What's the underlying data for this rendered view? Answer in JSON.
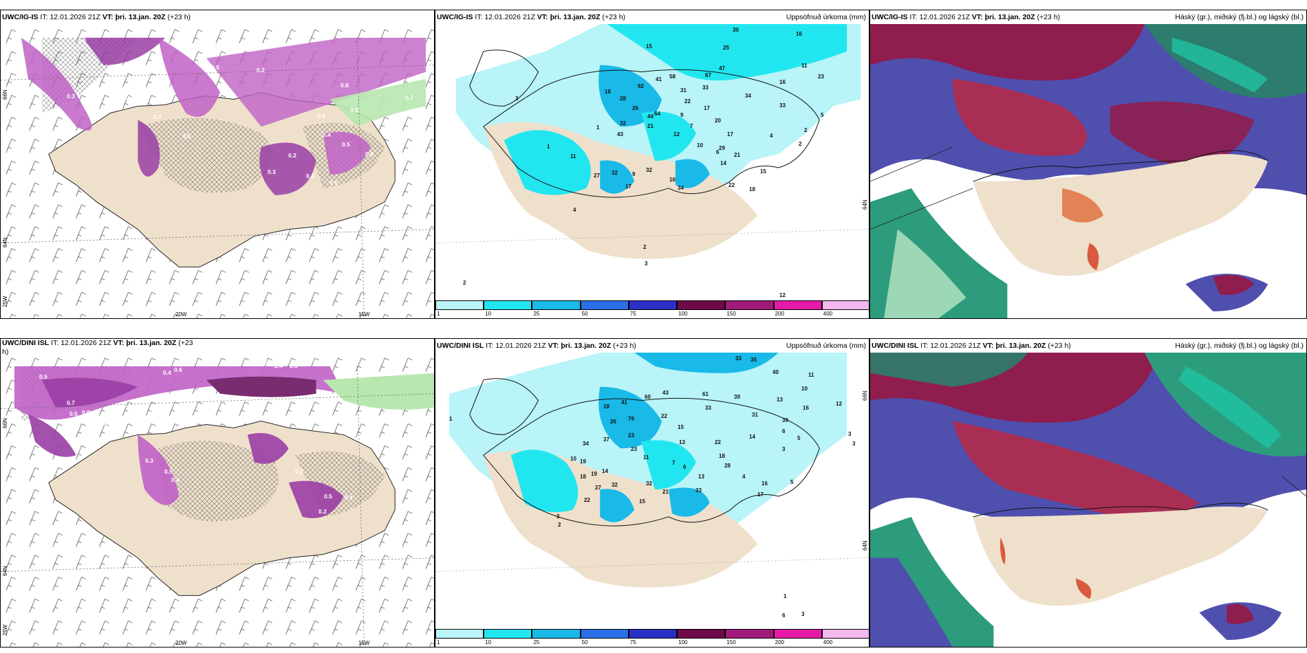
{
  "panels": [
    {
      "id": "p1",
      "model": "UWC/IG-IS",
      "it_label": "IT:",
      "it_value": "12.01.2026 21Z",
      "vt_label": "VT:",
      "vt_value": "þri. 13.jan. 20Z",
      "lead": "(+23 h)",
      "right_title": "",
      "axis": {
        "lat_top": "66N",
        "lat_mid": "64N",
        "lon_left": "25W",
        "lon_mid": "20W",
        "lon_right": "15W"
      },
      "labels": [
        "0.3",
        "0.4",
        "0.5",
        "0.6",
        "0.2",
        "0.8",
        "0.7",
        "0.3",
        "0.4",
        "0.5",
        "0.2",
        "0.4",
        "0.3",
        "0.6",
        "0.5",
        "0.2",
        "0.4",
        "0.6",
        "0.5"
      ]
    },
    {
      "id": "p2",
      "model": "UWC/IG-IS",
      "it_label": "IT:",
      "it_value": "12.01.2026 21Z",
      "vt_label": "VT:",
      "vt_value": "þri. 13.jan. 20Z",
      "lead": "(+23 h)",
      "right_title": "Uppsöfnuð úrkoma (mm)",
      "axis": {
        "lat_right": "64N"
      },
      "labels": [
        "15",
        "30",
        "16",
        "25",
        "47",
        "11",
        "23",
        "67",
        "33",
        "18",
        "92",
        "41",
        "58",
        "31",
        "22",
        "34",
        "16",
        "33",
        "28",
        "26",
        "64",
        "9",
        "17",
        "7",
        "20",
        "4",
        "12",
        "21",
        "44",
        "32",
        "43",
        "10",
        "6",
        "17",
        "29",
        "2",
        "21",
        "5",
        "14",
        "2",
        "11",
        "27",
        "32",
        "9",
        "32",
        "16",
        "15",
        "34",
        "22",
        "18",
        "17",
        "1",
        "3",
        "4",
        "1",
        "2",
        "3",
        "12",
        "2"
      ]
    },
    {
      "id": "p3",
      "model": "UWC/IG-IS",
      "it_label": "IT:",
      "it_value": "12.01.2026 21Z",
      "vt_label": "VT:",
      "vt_value": "þri. 13.jan. 20Z",
      "lead": "(+23 h)",
      "right_title": "Háský (gr.), miðský (fj.bl.) og lágský (bl.)"
    },
    {
      "id": "p4",
      "model": "UWC/DINI ISL",
      "it_label": "IT:",
      "it_value": "12.01.2026 21Z",
      "vt_label": "VT:",
      "vt_value": "þri. 13.jan. 20Z",
      "lead": "(+23",
      "lead2": "h)",
      "right_title": "",
      "axis": {
        "lat_top": "66N",
        "lat_mid": "64N",
        "lon_left": "25W",
        "lon_mid": "20W",
        "lon_right": "15W"
      },
      "labels": [
        "0.5",
        "0.4",
        "0.6",
        "2.5",
        "2.4",
        "2.3",
        "0.7",
        "0.8",
        "0.3",
        "0.4",
        "0.5",
        "1.0",
        "0.3",
        "0.5",
        "0.4",
        "0.2",
        "0.5",
        "0.3",
        "0.4",
        "0.7",
        "0.6"
      ]
    },
    {
      "id": "p5",
      "model": "UWC/DINI ISL",
      "it_label": "IT:",
      "it_value": "12.01.2026 21Z",
      "vt_label": "VT:",
      "vt_value": "þri. 13.jan. 20Z",
      "lead": "(+23 h)",
      "right_title": "Uppsöfnuð úrkoma (mm)",
      "axis": {
        "lat_right": "66N",
        "lat_right2": "64N"
      },
      "labels": [
        "33",
        "35",
        "40",
        "11",
        "10",
        "12",
        "18",
        "41",
        "60",
        "43",
        "61",
        "39",
        "13",
        "16",
        "26",
        "79",
        "22",
        "33",
        "31",
        "39",
        "23",
        "15",
        "13",
        "6",
        "34",
        "37",
        "23",
        "22",
        "14",
        "5",
        "19",
        "11",
        "18",
        "3",
        "6",
        "14",
        "7",
        "28",
        "3",
        "18",
        "19",
        "10",
        "13",
        "4",
        "27",
        "32",
        "32",
        "21",
        "33",
        "16",
        "17",
        "15",
        "22",
        "3",
        "2",
        "1",
        "6",
        "3",
        "3",
        "1",
        "5"
      ]
    },
    {
      "id": "p6",
      "model": "UWC/DINI ISL",
      "it_label": "IT:",
      "it_value": "12.01.2026 21Z",
      "vt_label": "VT:",
      "vt_value": "þri. 13.jan. 20Z",
      "lead": "(+23 h)",
      "right_title": "Háský (gr.), miðský (fj.bl.) og lágský (bl.)"
    }
  ],
  "colorbar": {
    "ticks": [
      "1",
      "10",
      "25",
      "50",
      "75",
      "100",
      "150",
      "200",
      "400"
    ],
    "colors": [
      "#b8f4f8",
      "#22e6ef",
      "#19b9e8",
      "#2a6fe8",
      "#2a2fc6",
      "#6e0a4a",
      "#a01a7a",
      "#e61aa6",
      "#f3b8ee"
    ]
  }
}
